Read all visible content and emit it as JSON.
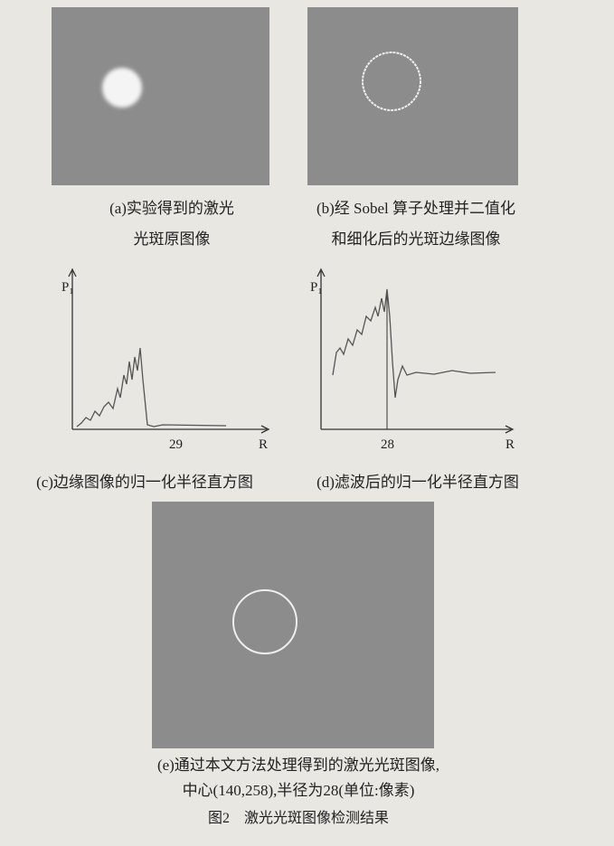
{
  "panels": [
    {
      "caption": [
        "(a)实验得到的激光",
        "光斑原图像"
      ]
    },
    {
      "caption": [
        "(b)经 Sobel 算子处理并二值化",
        "和细化后的光斑边缘图像"
      ]
    },
    {
      "y_label": "P₁",
      "x_label": "R",
      "x_mark": "29",
      "caption": [
        "(c)边缘图像的归一化半径直方图"
      ]
    },
    {
      "y_label": "P₁",
      "x_label": "R",
      "x_mark": "28",
      "caption": [
        "(d)滤波后的归一化半径直方图"
      ]
    },
    {
      "caption": [
        "(e)通过本文方法处理得到的激光光斑图像,",
        "中心(140,258),半径为28(单位:像素)"
      ]
    }
  ],
  "figure_caption": "图2　激光光斑图像检测结果"
}
